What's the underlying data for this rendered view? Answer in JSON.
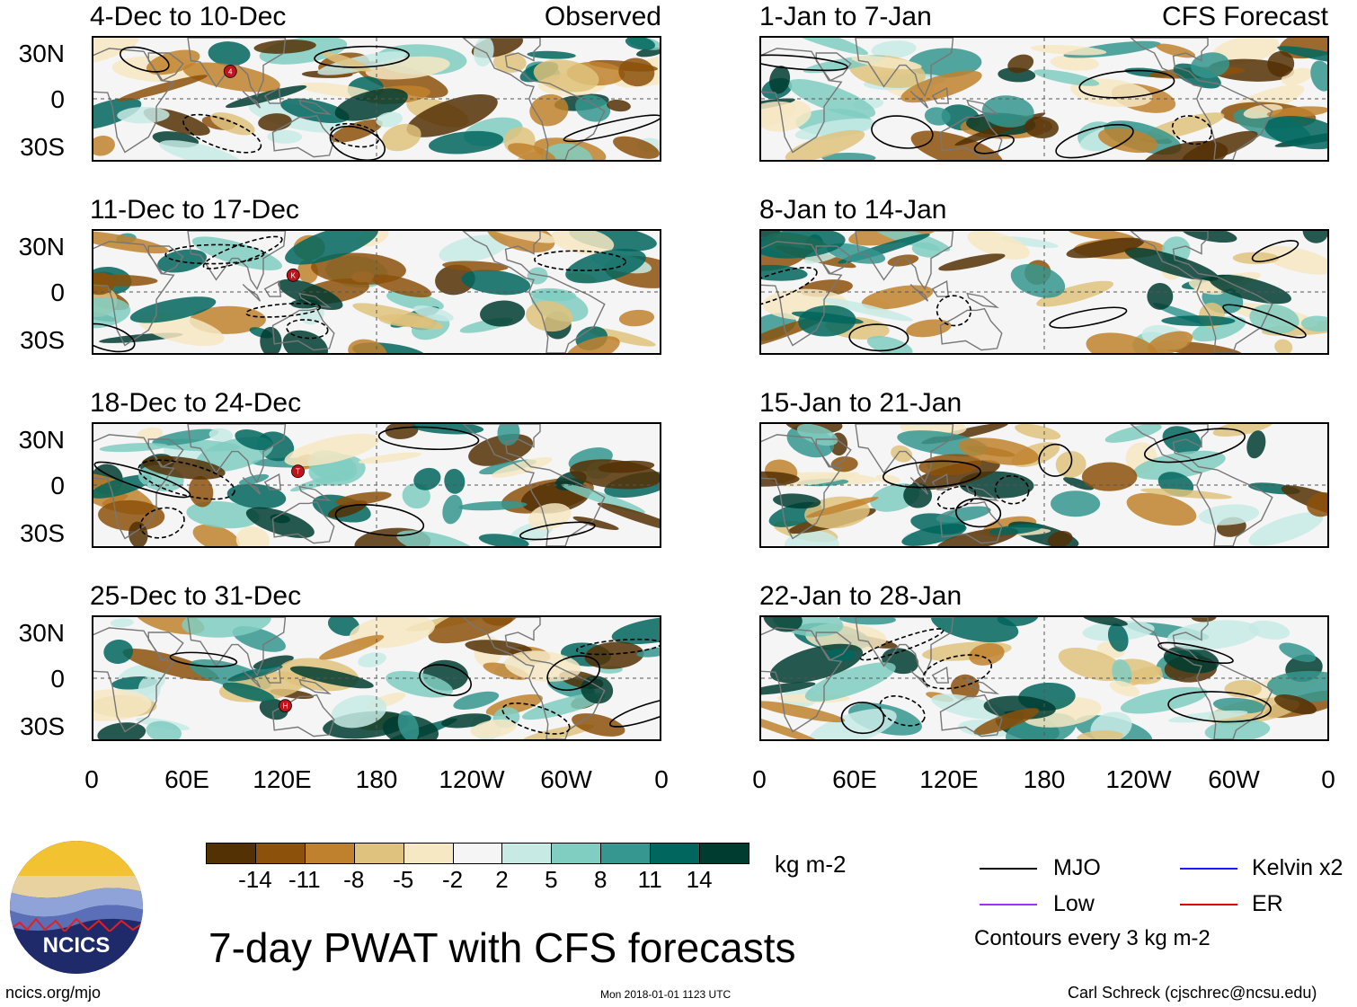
{
  "panels": {
    "left": {
      "tag": "Observed",
      "titles": [
        "4-Dec to 10-Dec",
        "11-Dec to 17-Dec",
        "18-Dec to 24-Dec",
        "25-Dec to 31-Dec"
      ],
      "storms": [
        "4",
        "K",
        "T",
        "H"
      ]
    },
    "right": {
      "tag": "CFS Forecast",
      "titles": [
        "1-Jan to 7-Jan",
        "8-Jan to 14-Jan",
        "15-Jan to 21-Jan",
        "22-Jan to 28-Jan"
      ]
    }
  },
  "axes": {
    "lat_labels": [
      "30N",
      "0",
      "30S"
    ],
    "lon_labels": [
      "0",
      "60E",
      "120E",
      "180",
      "120W",
      "60W",
      "0"
    ]
  },
  "colorbar": {
    "unit": "kg m-2",
    "labels": [
      "-14",
      "-11",
      "-8",
      "-5",
      "-2",
      "2",
      "5",
      "8",
      "11",
      "14"
    ],
    "colors": [
      "#543005",
      "#8c510a",
      "#bf812d",
      "#dfc27d",
      "#f6e8c3",
      "#f5f5f5",
      "#c7eae5",
      "#80cdc1",
      "#35978f",
      "#01665e",
      "#003c30"
    ]
  },
  "legend": {
    "items": [
      {
        "label": "MJO",
        "color": "#000000"
      },
      {
        "label": "Kelvin x2",
        "color": "#1a1aff"
      },
      {
        "label": "Low",
        "color": "#9933ff"
      },
      {
        "label": "ER",
        "color": "#e00000"
      }
    ],
    "note": "Contours every 3 kg m-2"
  },
  "title": "7-day PWAT with CFS forecasts",
  "logo": {
    "text": "NCICS"
  },
  "footer": {
    "url": "ncics.org/mjo",
    "timestamp": "Mon 2018-01-01 1123 UTC",
    "credit": "Carl Schreck (cjschrec@ncsu.edu)"
  }
}
